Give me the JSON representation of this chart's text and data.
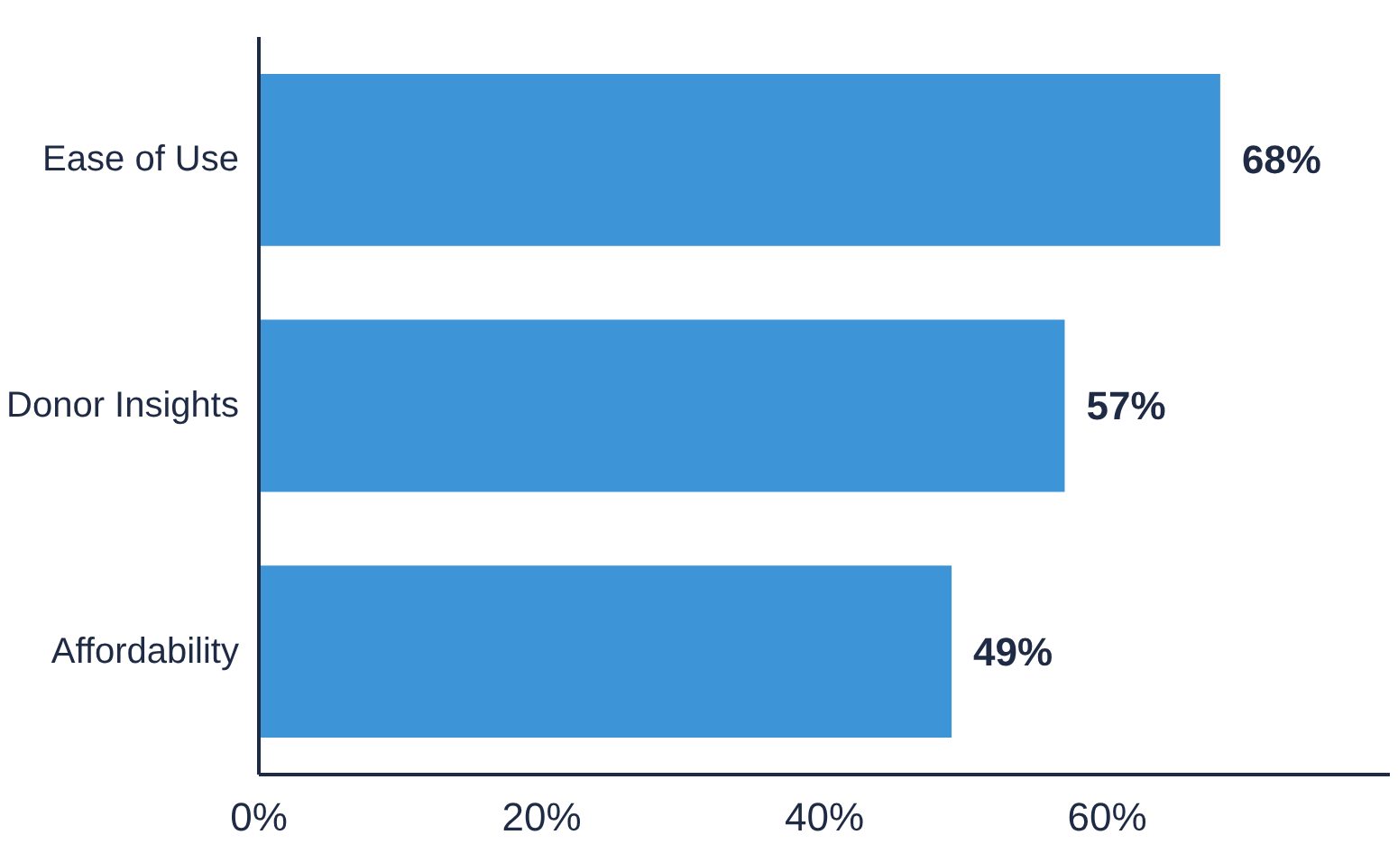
{
  "chart_data": {
    "type": "bar",
    "orientation": "horizontal",
    "categories": [
      "Ease of Use",
      "Donor Insights",
      "Affordability"
    ],
    "values": [
      68,
      57,
      49
    ],
    "color": "#3d95d8",
    "data_labels": true,
    "value_labels": [
      "68%",
      "57%",
      "49%"
    ],
    "xlim": [
      0,
      80
    ],
    "xticks": [
      {
        "value": 0,
        "label": "0%"
      },
      {
        "value": 20,
        "label": "20%"
      },
      {
        "value": 40,
        "label": "40%"
      },
      {
        "value": 60,
        "label": "60%"
      }
    ],
    "grid": false
  }
}
